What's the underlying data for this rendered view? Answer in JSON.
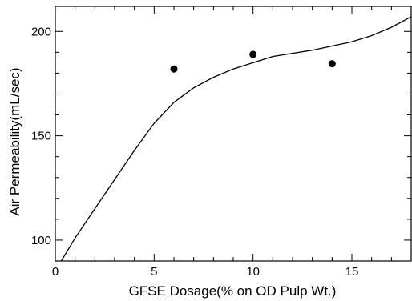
{
  "chart_data": {
    "type": "scatter",
    "xlabel": "GFSE Dosage(% on OD Pulp Wt.)",
    "ylabel": "Air Permeability(mL/sec)",
    "xlim": [
      0,
      18
    ],
    "ylim": [
      90,
      212
    ],
    "x_major_ticks": [
      0,
      5,
      10,
      15
    ],
    "x_minor_ticks": [
      1,
      2,
      3,
      4,
      6,
      7,
      8,
      9,
      11,
      12,
      13,
      14,
      16,
      17
    ],
    "y_major_ticks": [
      100,
      150,
      200
    ],
    "y_minor_ticks": [
      110,
      120,
      130,
      140,
      160,
      170,
      180,
      190
    ],
    "x_tick_labels": [
      "0",
      "5",
      "10",
      "15"
    ],
    "y_tick_labels": [
      "100",
      "150",
      "200"
    ],
    "grid": false,
    "legend": "none",
    "series": [
      {
        "kind": "points",
        "x": [
          6,
          10,
          14
        ],
        "y": [
          182,
          189,
          184.5
        ]
      },
      {
        "kind": "fitted-curve",
        "x": [
          0.3,
          1,
          2,
          3,
          4,
          5,
          6,
          7,
          8,
          9,
          10,
          11,
          12,
          13,
          14,
          15,
          16,
          17,
          18
        ],
        "y": [
          90,
          101,
          115,
          129,
          143,
          156,
          166,
          173,
          178,
          182,
          185,
          188,
          189.5,
          191,
          193,
          195,
          198,
          202,
          207
        ]
      }
    ]
  }
}
